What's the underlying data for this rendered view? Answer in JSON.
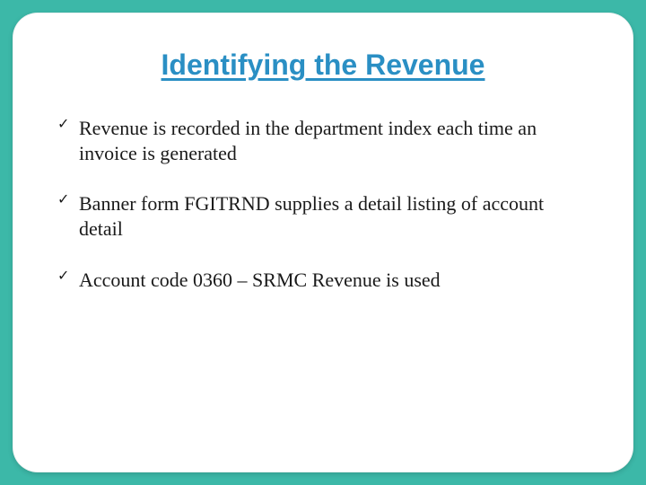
{
  "slide": {
    "background_color": "#3cb8a8",
    "card_background": "#ffffff",
    "card_border_radius": 28,
    "title": {
      "text": "Identifying the Revenue",
      "color": "#2a8fc4",
      "fontsize": 32,
      "font_family": "Verdana, Geneva, sans-serif",
      "underline": true,
      "font_weight": 700
    },
    "bullets": {
      "marker": "✓",
      "marker_color": "#1a1a1a",
      "text_color": "#1a1a1a",
      "fontsize": 22,
      "line_height": 1.28,
      "item_spacing": 28,
      "font_family": "Georgia, 'Times New Roman', serif",
      "items": [
        "Revenue is recorded in the department index each time an invoice is generated",
        "Banner form FGITRND supplies a detail listing of account detail",
        "Account code 0360 – SRMC Revenue is used"
      ]
    }
  }
}
